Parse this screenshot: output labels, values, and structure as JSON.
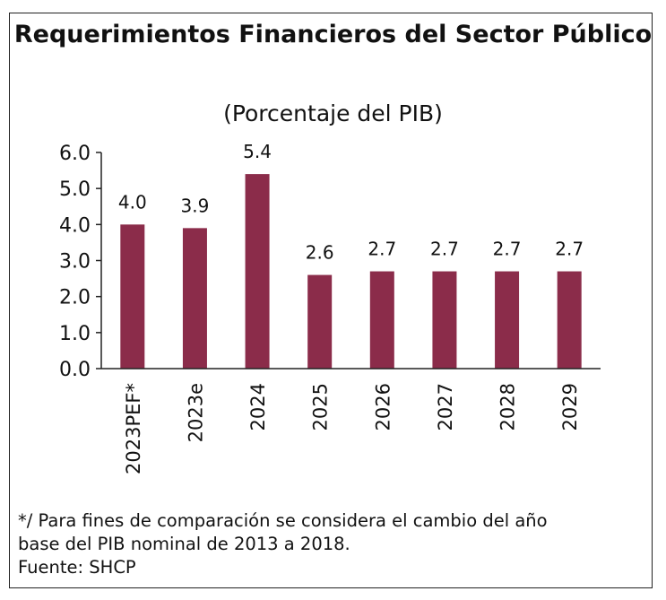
{
  "chart_data": {
    "type": "bar",
    "title": "Requerimientos Financieros del Sector Público",
    "subtitle": "(Porcentaje del PIB)",
    "categories": [
      "2023PEF*",
      "2023e",
      "2024",
      "2025",
      "2026",
      "2027",
      "2028",
      "2029"
    ],
    "values": [
      4.0,
      3.9,
      5.4,
      2.6,
      2.7,
      2.7,
      2.7,
      2.7
    ],
    "data_labels": [
      "4.0",
      "3.9",
      "5.4",
      "2.6",
      "2.7",
      "2.7",
      "2.7",
      "2.7"
    ],
    "yticks": [
      "0.0",
      "1.0",
      "2.0",
      "3.0",
      "4.0",
      "5.0",
      "6.0"
    ],
    "ylim": [
      0,
      6
    ],
    "xlabel": "",
    "ylabel": "",
    "grid": false,
    "legend": "none",
    "bar_color": "#8B2C4A"
  },
  "notes": {
    "line1": "*/ Para fines de comparación se considera el cambio del año",
    "line2": "base del PIB nominal de 2013 a 2018.",
    "source": "Fuente: SHCP"
  }
}
